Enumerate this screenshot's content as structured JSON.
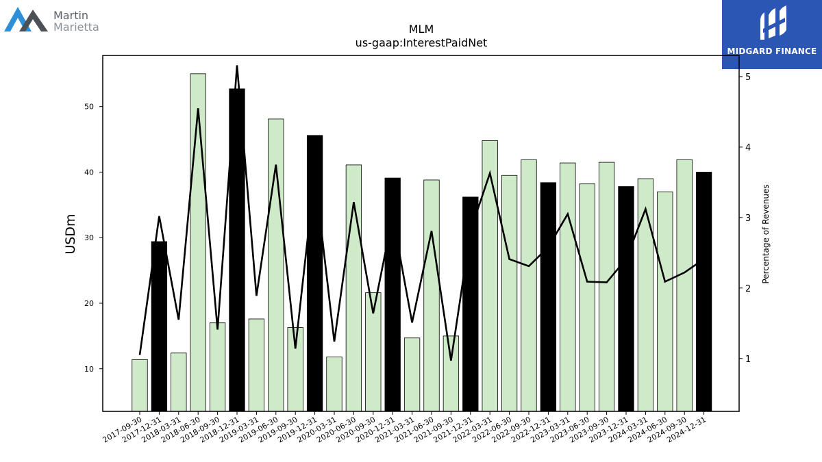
{
  "logos": {
    "left": {
      "line1": "Martin",
      "line2": "Marietta"
    },
    "right": {
      "brand": "MIDGARD FINANCE"
    }
  },
  "colors": {
    "bar_light": "#cfeac8",
    "bar_dark": "#000000",
    "line": "#000000",
    "right_logo_bg": "#2b56b3",
    "left_logo_mark": "#2e8fd6"
  },
  "chart_data": {
    "type": "bar",
    "title": "MLM",
    "subtitle": "us-gaap:InterestPaidNet",
    "ylabel": "USDm",
    "y2label": "Percentage of Revenues",
    "ylim": [
      3.5,
      57.8
    ],
    "y2lim": [
      0.25,
      5.3
    ],
    "yticks": [
      10,
      20,
      30,
      40,
      50
    ],
    "y2ticks": [
      1,
      2,
      3,
      4,
      5
    ],
    "grid": false,
    "categories": [
      "2017-09-30",
      "2017-12-31",
      "2018-03-31",
      "2018-06-30",
      "2018-09-30",
      "2018-12-31",
      "2019-03-31",
      "2019-06-30",
      "2019-09-30",
      "2019-12-31",
      "2020-03-31",
      "2020-06-30",
      "2020-09-30",
      "2020-12-31",
      "2021-03-31",
      "2021-06-30",
      "2021-09-30",
      "2021-12-31",
      "2022-03-31",
      "2022-06-30",
      "2022-09-30",
      "2022-12-31",
      "2023-03-31",
      "2023-06-30",
      "2023-09-30",
      "2023-12-31",
      "2024-03-31",
      "2024-06-30",
      "2024-09-30",
      "2024-12-31"
    ],
    "values": [
      11.4,
      29.4,
      12.4,
      55.0,
      17.0,
      52.7,
      17.6,
      48.1,
      16.3,
      45.6,
      11.8,
      41.1,
      21.6,
      39.1,
      14.7,
      38.8,
      15.0,
      36.2,
      44.8,
      39.5,
      41.9,
      38.4,
      41.4,
      38.2,
      41.5,
      37.8,
      39.0,
      37.0,
      41.9,
      40.0
    ],
    "dark_bars": [
      1,
      5,
      9,
      13,
      17,
      21,
      25,
      29
    ],
    "pct_of_revenues": [
      1.05,
      3.02,
      1.55,
      4.55,
      1.41,
      5.16,
      1.89,
      3.75,
      1.14,
      3.62,
      1.24,
      3.22,
      1.64,
      3.02,
      1.51,
      2.81,
      0.97,
      2.81,
      3.63,
      2.41,
      2.31,
      2.58,
      3.05,
      2.09,
      2.08,
      2.41,
      3.12,
      2.09,
      2.22,
      2.41
    ]
  }
}
